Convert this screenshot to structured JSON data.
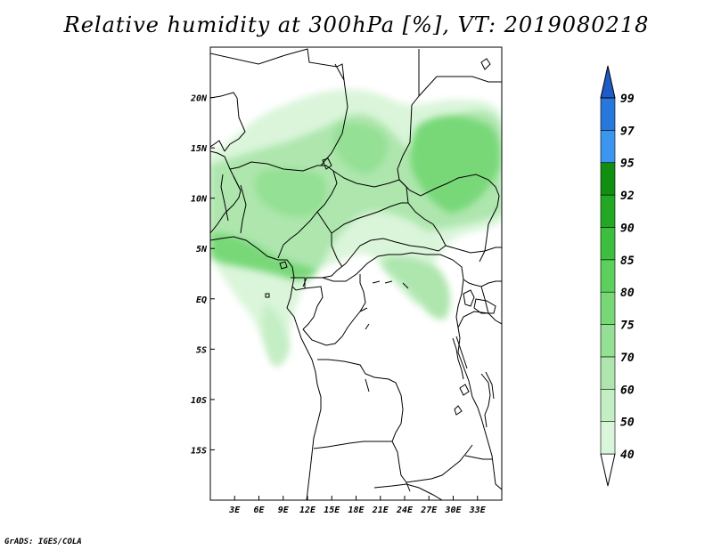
{
  "title": "Relative humidity at 300hPa [%], VT: 2019080218",
  "credit": "GrADS: IGES/COLA",
  "map": {
    "lon_range": [
      0,
      36
    ],
    "lat_range": [
      -20,
      25
    ],
    "lat_ticks": [
      {
        "value": 20,
        "label": "20N"
      },
      {
        "value": 15,
        "label": "15N"
      },
      {
        "value": 10,
        "label": "10N"
      },
      {
        "value": 5,
        "label": "5N"
      },
      {
        "value": 0,
        "label": "EQ"
      },
      {
        "value": -5,
        "label": "5S"
      },
      {
        "value": -10,
        "label": "10S"
      },
      {
        "value": -15,
        "label": "15S"
      }
    ],
    "lon_ticks": [
      {
        "value": 3,
        "label": "3E"
      },
      {
        "value": 6,
        "label": "6E"
      },
      {
        "value": 9,
        "label": "9E"
      },
      {
        "value": 12,
        "label": "12E"
      },
      {
        "value": 15,
        "label": "15E"
      },
      {
        "value": 18,
        "label": "18E"
      },
      {
        "value": 21,
        "label": "21E"
      },
      {
        "value": 24,
        "label": "24E"
      },
      {
        "value": 27,
        "label": "27E"
      },
      {
        "value": 30,
        "label": "30E"
      },
      {
        "value": 33,
        "label": "33E"
      }
    ]
  },
  "colorbar": {
    "levels": [
      "40",
      "50",
      "60",
      "70",
      "75",
      "80",
      "85",
      "90",
      "92",
      "95",
      "97",
      "99"
    ],
    "colors": [
      "#f0fcf0",
      "#daf5da",
      "#c4eec4",
      "#aee6ae",
      "#94e094",
      "#78d878",
      "#5ccf5c",
      "#3ebe3e",
      "#22a822",
      "#118f11",
      "#3c96f0",
      "#2878dc",
      "#1e5ac8"
    ]
  }
}
